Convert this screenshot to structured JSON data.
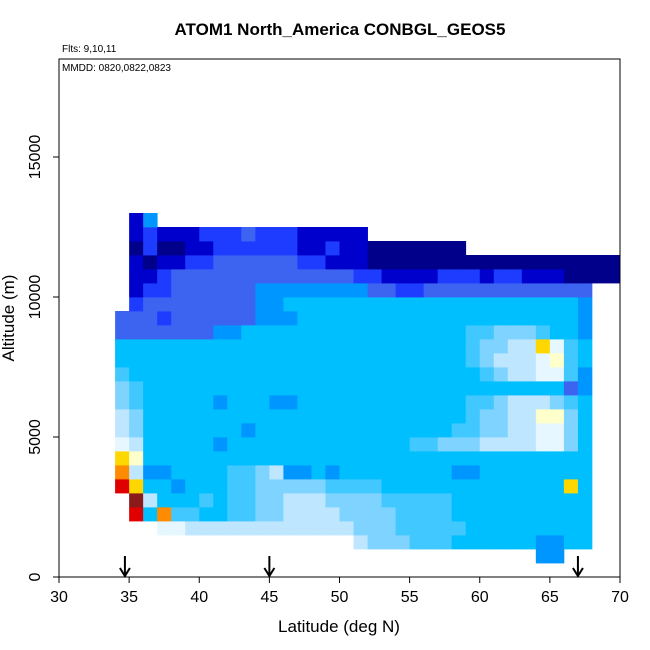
{
  "chart_data": {
    "type": "heatmap",
    "title": "ATOM1 North_America CONBGL_GEOS5",
    "flights_note": "Flts: 9,10,11",
    "dates_note": "MMDD: 0820,0822,0823",
    "xlabel": "Latitude (deg N)",
    "ylabel": "Altitude (m)",
    "xlim": [
      30,
      70
    ],
    "ylim": [
      0,
      18500
    ],
    "x_ticks": [
      30,
      35,
      40,
      45,
      50,
      55,
      60,
      65,
      70
    ],
    "y_ticks": [
      0,
      5000,
      10000,
      15000
    ],
    "grid": false,
    "colorscale": [
      "#00008b",
      "#0000cd",
      "#1e3cff",
      "#3c64f0",
      "#0096ff",
      "#00bfff",
      "#40c8ff",
      "#7fd4ff",
      "#bfe6ff",
      "#e6f7ff",
      "#ffffcc",
      "#ffd700",
      "#ff8c00",
      "#e00000",
      "#8b1a1a"
    ],
    "cell_size": {
      "lat": 1,
      "alt_m": 500
    },
    "rows": [
      {
        "alt": 750,
        "lat_start": 64,
        "values": [
          4,
          4
        ]
      },
      {
        "alt": 1250,
        "lat_start": 51,
        "values": [
          8,
          7,
          7,
          7,
          6,
          6,
          6,
          5,
          5,
          5,
          5,
          5,
          5,
          4,
          4,
          5,
          5
        ]
      },
      {
        "alt": 1750,
        "lat_start": 37,
        "values": [
          9,
          9,
          8,
          8,
          8,
          8,
          8,
          8,
          8,
          8,
          8,
          8,
          8,
          8,
          7,
          7,
          7,
          6,
          6,
          6,
          6,
          6,
          5,
          5,
          5,
          5,
          5,
          5,
          5,
          5,
          5
        ]
      },
      {
        "alt": 2250,
        "lat_start": 35,
        "values": [
          13,
          5,
          12,
          6,
          6,
          5,
          5,
          6,
          6,
          7,
          7,
          8,
          8,
          8,
          8,
          7,
          7,
          7,
          7,
          6,
          6,
          6,
          6,
          5,
          5,
          5,
          5,
          5,
          5,
          5,
          5,
          5,
          5
        ]
      },
      {
        "alt": 2750,
        "lat_start": 35,
        "values": [
          14,
          8,
          5,
          5,
          5,
          6,
          5,
          6,
          6,
          7,
          7,
          8,
          8,
          8,
          7,
          7,
          7,
          7,
          6,
          6,
          6,
          6,
          6,
          5,
          5,
          5,
          5,
          5,
          5,
          5,
          5,
          5,
          5
        ]
      },
      {
        "alt": 3250,
        "lat_start": 34,
        "values": [
          13,
          11,
          5,
          5,
          4,
          5,
          5,
          5,
          6,
          6,
          7,
          7,
          7,
          7,
          7,
          6,
          6,
          6,
          6,
          5,
          5,
          5,
          5,
          5,
          5,
          5,
          5,
          5,
          5,
          5,
          5,
          5,
          11,
          5
        ]
      },
      {
        "alt": 3750,
        "lat_start": 34,
        "values": [
          12,
          8,
          4,
          4,
          5,
          5,
          5,
          5,
          6,
          6,
          7,
          8,
          4,
          4,
          5,
          4,
          5,
          5,
          5,
          5,
          5,
          5,
          5,
          5,
          4,
          4,
          5,
          5,
          5,
          5,
          5,
          5,
          5,
          5
        ]
      },
      {
        "alt": 4250,
        "lat_start": 34,
        "values": [
          11,
          10,
          5,
          5,
          5,
          5,
          5,
          5,
          5,
          5,
          5,
          5,
          5,
          5,
          5,
          5,
          5,
          5,
          5,
          5,
          5,
          5,
          5,
          5,
          5,
          5,
          5,
          5,
          5,
          5,
          5,
          5,
          5,
          5
        ]
      },
      {
        "alt": 4750,
        "lat_start": 34,
        "values": [
          9,
          8,
          5,
          5,
          5,
          5,
          5,
          4,
          5,
          5,
          5,
          5,
          5,
          5,
          5,
          5,
          5,
          5,
          5,
          5,
          5,
          6,
          6,
          7,
          7,
          7,
          8,
          8,
          8,
          8,
          9,
          9,
          7,
          5
        ]
      },
      {
        "alt": 5250,
        "lat_start": 34,
        "values": [
          8,
          7,
          5,
          5,
          5,
          5,
          5,
          5,
          5,
          4,
          5,
          5,
          5,
          5,
          5,
          5,
          5,
          5,
          5,
          5,
          5,
          5,
          5,
          5,
          6,
          6,
          7,
          7,
          8,
          8,
          9,
          9,
          7,
          5
        ]
      },
      {
        "alt": 5750,
        "lat_start": 34,
        "values": [
          8,
          7,
          5,
          5,
          5,
          5,
          5,
          5,
          5,
          5,
          5,
          5,
          5,
          5,
          5,
          5,
          5,
          5,
          5,
          5,
          5,
          5,
          5,
          5,
          5,
          6,
          7,
          7,
          8,
          8,
          10,
          10,
          7,
          5
        ]
      },
      {
        "alt": 6250,
        "lat_start": 34,
        "values": [
          7,
          6,
          5,
          5,
          5,
          5,
          5,
          4,
          5,
          5,
          5,
          4,
          4,
          5,
          5,
          5,
          5,
          5,
          5,
          5,
          5,
          5,
          5,
          5,
          5,
          6,
          6,
          7,
          8,
          8,
          8,
          7,
          6,
          5
        ]
      },
      {
        "alt": 6750,
        "lat_start": 34,
        "values": [
          7,
          6,
          5,
          5,
          5,
          5,
          5,
          5,
          5,
          5,
          5,
          5,
          5,
          5,
          5,
          5,
          5,
          5,
          5,
          5,
          5,
          5,
          5,
          5,
          5,
          5,
          5,
          5,
          5,
          5,
          5,
          5,
          3,
          4
        ]
      },
      {
        "alt": 7250,
        "lat_start": 34,
        "values": [
          6,
          5,
          5,
          5,
          5,
          5,
          5,
          5,
          5,
          5,
          5,
          5,
          5,
          5,
          5,
          5,
          5,
          5,
          5,
          5,
          5,
          5,
          5,
          5,
          5,
          5,
          6,
          7,
          8,
          8,
          9,
          9,
          6,
          4
        ]
      },
      {
        "alt": 7750,
        "lat_start": 34,
        "values": [
          5,
          5,
          5,
          5,
          5,
          5,
          5,
          5,
          5,
          5,
          5,
          5,
          5,
          5,
          5,
          5,
          5,
          5,
          5,
          5,
          5,
          5,
          5,
          5,
          5,
          6,
          7,
          8,
          8,
          8,
          9,
          10,
          6,
          5
        ]
      },
      {
        "alt": 8250,
        "lat_start": 34,
        "values": [
          5,
          5,
          5,
          5,
          5,
          5,
          5,
          5,
          5,
          5,
          5,
          5,
          5,
          5,
          5,
          5,
          5,
          5,
          5,
          5,
          5,
          5,
          5,
          5,
          5,
          6,
          7,
          7,
          8,
          8,
          11,
          9,
          6,
          5
        ]
      },
      {
        "alt": 8750,
        "lat_start": 34,
        "values": [
          3,
          3,
          3,
          3,
          3,
          3,
          3,
          4,
          4,
          5,
          5,
          5,
          5,
          5,
          5,
          5,
          5,
          5,
          5,
          5,
          5,
          5,
          5,
          5,
          5,
          6,
          6,
          7,
          7,
          7,
          6,
          5,
          5,
          4
        ]
      },
      {
        "alt": 9250,
        "lat_start": 34,
        "values": [
          3,
          3,
          3,
          2,
          3,
          3,
          3,
          3,
          3,
          3,
          4,
          4,
          4,
          5,
          5,
          5,
          5,
          5,
          5,
          5,
          5,
          5,
          5,
          5,
          5,
          5,
          5,
          5,
          5,
          5,
          5,
          5,
          5,
          4
        ]
      },
      {
        "alt": 9750,
        "lat_start": 35,
        "values": [
          2,
          3,
          3,
          3,
          3,
          3,
          3,
          3,
          3,
          4,
          4,
          5,
          5,
          5,
          5,
          5,
          5,
          5,
          5,
          5,
          5,
          5,
          5,
          5,
          5,
          5,
          5,
          5,
          5,
          5,
          5,
          5,
          4
        ]
      },
      {
        "alt": 10250,
        "lat_start": 35,
        "values": [
          1,
          2,
          2,
          3,
          3,
          3,
          3,
          3,
          3,
          4,
          4,
          4,
          4,
          4,
          4,
          4,
          4,
          3,
          3,
          2,
          2,
          3,
          3,
          3,
          3,
          3,
          3,
          3,
          3,
          3,
          3,
          3,
          3
        ]
      },
      {
        "alt": 10750,
        "lat_start": 35,
        "values": [
          1,
          1,
          2,
          3,
          3,
          3,
          3,
          3,
          3,
          3,
          3,
          3,
          3,
          3,
          3,
          3,
          2,
          2,
          1,
          1,
          1,
          1,
          2,
          2,
          2,
          1,
          2,
          2,
          1,
          1,
          1,
          0,
          0,
          0,
          0
        ]
      },
      {
        "alt": 11250,
        "lat_start": 35,
        "values": [
          1,
          0,
          1,
          1,
          2,
          2,
          3,
          3,
          3,
          3,
          3,
          3,
          2,
          2,
          1,
          1,
          1,
          0,
          0,
          0,
          0,
          0,
          0,
          0,
          0,
          0,
          0,
          0,
          0,
          0,
          0,
          0,
          0,
          0,
          0
        ]
      },
      {
        "alt": 11750,
        "lat_start": 35,
        "values": [
          0,
          2,
          0,
          0,
          1,
          1,
          2,
          2,
          2,
          2,
          2,
          2,
          1,
          1,
          2,
          1,
          1,
          0,
          0,
          0,
          0,
          0,
          0,
          0
        ]
      },
      {
        "alt": 12250,
        "lat_start": 35,
        "values": [
          1,
          2,
          1,
          1,
          1,
          2,
          2,
          2,
          3,
          2,
          2,
          2,
          1,
          1,
          1,
          1,
          1
        ]
      },
      {
        "alt": 12750,
        "lat_start": 35,
        "values": [
          1,
          4
        ]
      }
    ],
    "flight_arrows": [
      34.7,
      45,
      67
    ]
  }
}
